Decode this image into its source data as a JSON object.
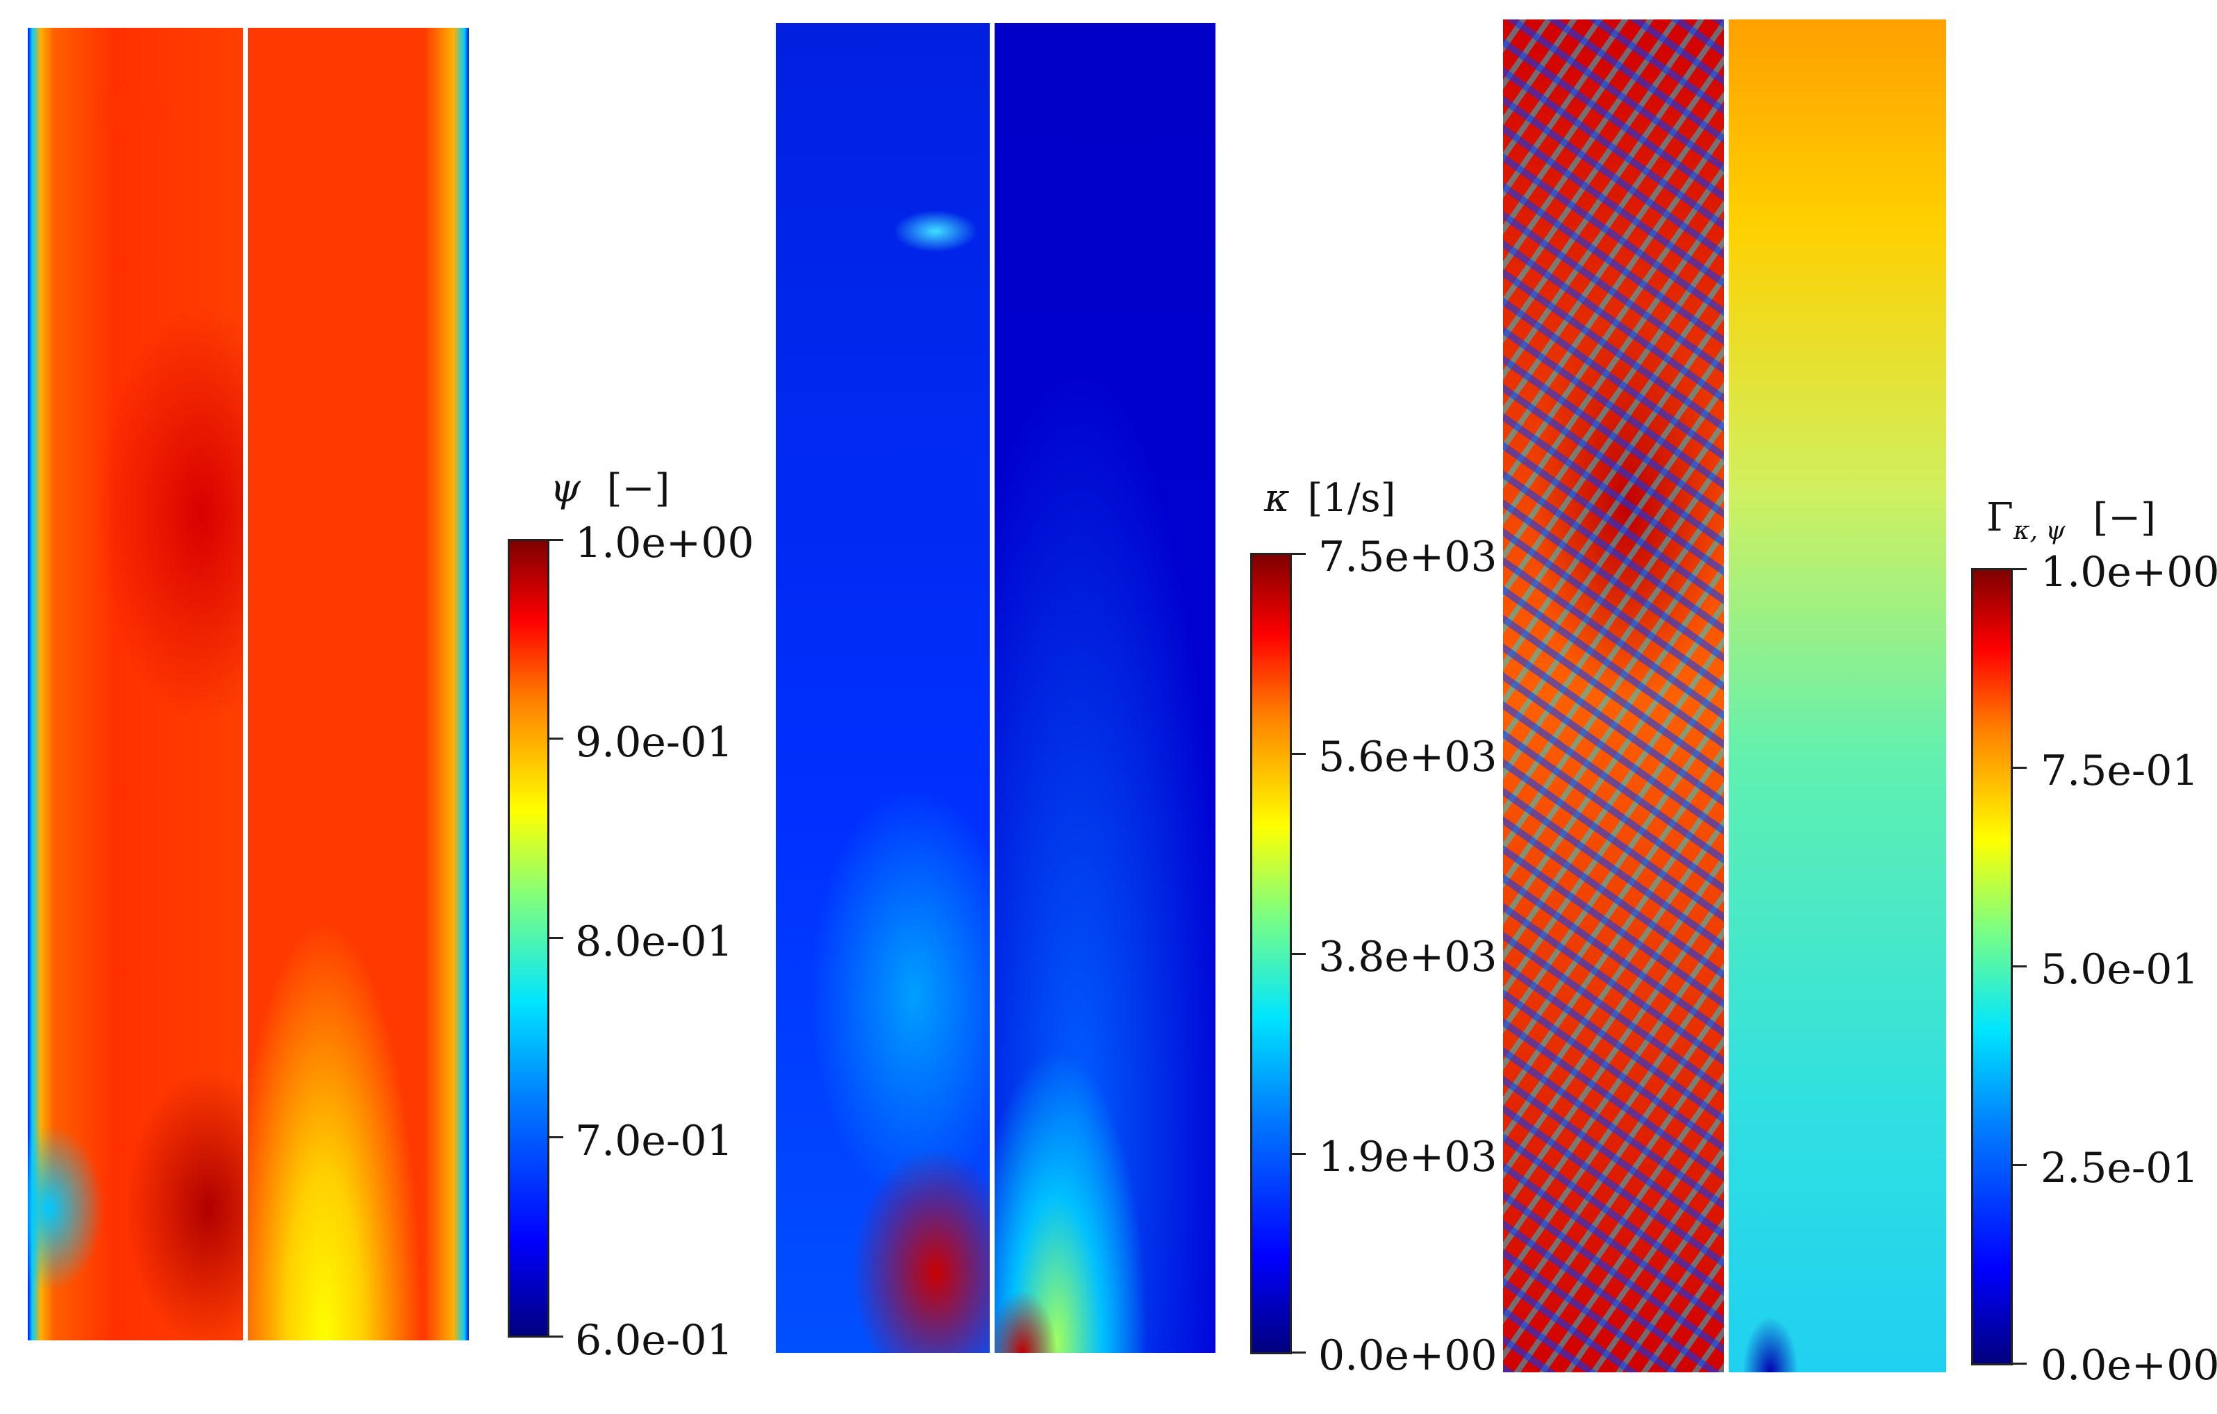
{
  "figure": {
    "panels": [
      {
        "quantity": "psi",
        "colorbar": {
          "symbol": "ψ",
          "unit": "[−]",
          "ticks": [
            "1.0e+00",
            "9.0e-01",
            "8.0e-01",
            "7.0e-01",
            "6.0e-01"
          ]
        }
      },
      {
        "quantity": "kappa",
        "colorbar": {
          "symbol": "κ",
          "unit": "[1/s]",
          "ticks": [
            "7.5e+03",
            "5.6e+03",
            "3.8e+03",
            "1.9e+03",
            "0.0e+00"
          ]
        }
      },
      {
        "quantity": "gamma",
        "colorbar": {
          "symbol": "Γ",
          "subscript": "κ, ψ",
          "unit": "[−]",
          "ticks": [
            "1.0e+00",
            "7.5e-01",
            "5.0e-01",
            "2.5e-01",
            "0.0e+00"
          ]
        }
      }
    ],
    "colors": {
      "dark_red": "#7f0000",
      "red": "#ff0000",
      "orange": "#ff7f00",
      "yellow": "#ffff00",
      "green": "#7fff7f",
      "cyan": "#00e5ff",
      "blue": "#0000ff",
      "dark_blue": "#00007f"
    }
  }
}
